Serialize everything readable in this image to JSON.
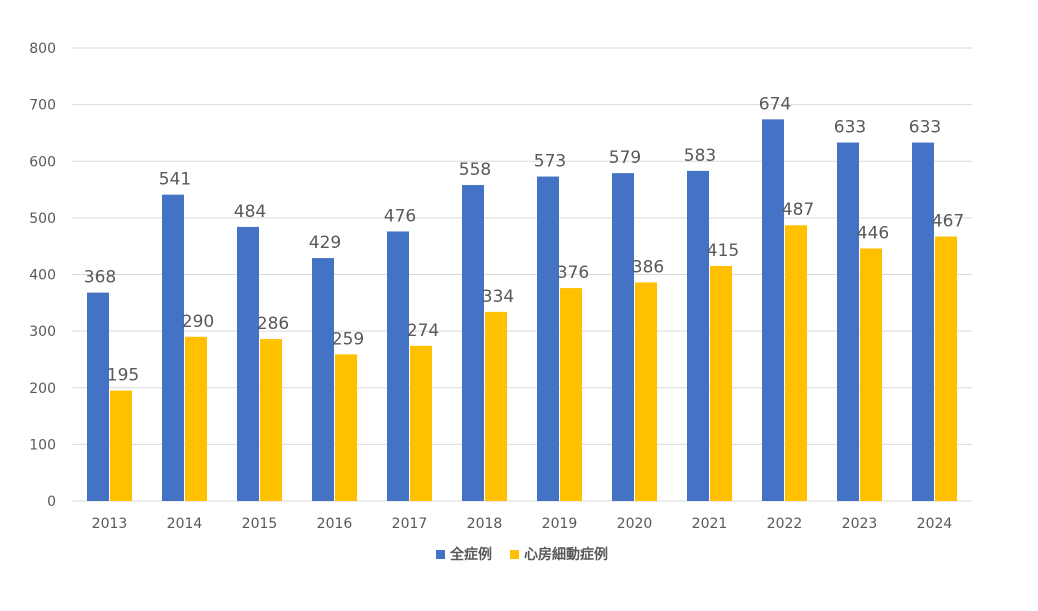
{
  "chart_data": {
    "type": "bar",
    "categories": [
      "2013",
      "2014",
      "2015",
      "2016",
      "2017",
      "2018",
      "2019",
      "2020",
      "2021",
      "2022",
      "2023",
      "2024"
    ],
    "series": [
      {
        "name": "全症例",
        "color": "#4472c4",
        "values": [
          368,
          541,
          484,
          429,
          476,
          558,
          573,
          579,
          583,
          674,
          633,
          633
        ]
      },
      {
        "name": "心房細動症例",
        "color": "#ffc000",
        "values": [
          195,
          290,
          286,
          259,
          274,
          334,
          376,
          386,
          415,
          487,
          446,
          467
        ]
      }
    ],
    "ylim": [
      0,
      800
    ],
    "yticks": [
      0,
      100,
      200,
      300,
      400,
      500,
      600,
      700,
      800
    ],
    "grid": true,
    "legend_position": "bottom",
    "data_labels": true
  }
}
